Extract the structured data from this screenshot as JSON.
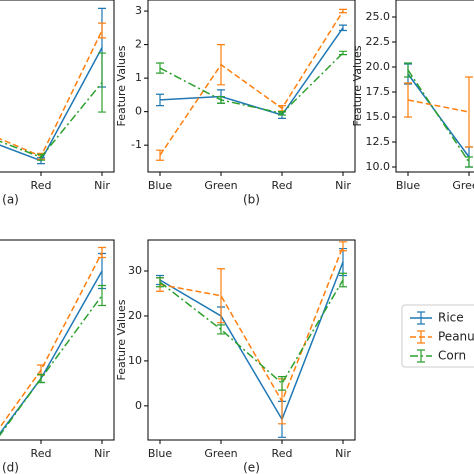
{
  "chart_data": [
    {
      "type": "line",
      "label": "(a)",
      "categories": [
        null,
        null,
        "Red",
        "Nir"
      ],
      "ylim": [
        0,
        3.5
      ],
      "series": [
        {
          "name": "Rice",
          "color": "#1f77b4",
          "dash": "solid",
          "values": [
            null,
            0.7,
            0.23,
            2.53
          ],
          "errors": [
            null,
            0.05,
            0.06,
            0.8
          ]
        },
        {
          "name": "Peanut",
          "color": "#ff7f0e",
          "dash": "dashed",
          "values": [
            null,
            0.85,
            0.32,
            2.88
          ],
          "errors": [
            null,
            0.05,
            0.06,
            0.15
          ]
        },
        {
          "name": "Corn",
          "color": "#2ca02c",
          "dash": "dashdot",
          "values": [
            null,
            0.78,
            0.3,
            1.82
          ],
          "errors": [
            null,
            0.05,
            0.06,
            0.6
          ]
        }
      ]
    },
    {
      "type": "line",
      "label": "(b)",
      "ylabel": "Feature Values",
      "categories": [
        "Blue",
        "Green",
        "Red",
        "Nir"
      ],
      "ylim": [
        -1.8,
        3.33
      ],
      "yticks": [
        -1,
        0,
        1,
        2,
        3
      ],
      "series": [
        {
          "name": "Rice",
          "color": "#1f77b4",
          "dash": "solid",
          "values": [
            0.35,
            0.45,
            -0.1,
            2.5
          ],
          "errors": [
            0.17,
            0.2,
            0.1,
            0.08
          ]
        },
        {
          "name": "Peanut",
          "color": "#ff7f0e",
          "dash": "dashed",
          "values": [
            -1.3,
            1.4,
            0.1,
            3.0
          ],
          "errors": [
            0.15,
            0.6,
            0.08,
            0.05
          ]
        },
        {
          "name": "Corn",
          "color": "#2ca02c",
          "dash": "dashdot",
          "values": [
            1.3,
            0.35,
            -0.05,
            1.75
          ],
          "errors": [
            0.15,
            0.1,
            0.05,
            0.05
          ]
        }
      ]
    },
    {
      "type": "line",
      "ylabel": "Feature Values",
      "categories": [
        "Blue",
        "Green",
        null,
        null
      ],
      "ylim": [
        9.5,
        26.7
      ],
      "yticks": [
        {
          "value": 10,
          "label": "10.0"
        },
        {
          "value": 12.5,
          "label": "12.5"
        },
        {
          "value": 15,
          "label": "15.0"
        },
        {
          "value": 17.5,
          "label": "17.5"
        },
        {
          "value": 20,
          "label": "20.0"
        },
        {
          "value": 22.5,
          "label": "22.5"
        },
        {
          "value": 25,
          "label": "25.0"
        }
      ],
      "series": [
        {
          "name": "Rice",
          "color": "#1f77b4",
          "dash": "solid",
          "values": [
            19.3,
            11,
            null,
            null
          ],
          "errors": [
            1,
            1,
            null,
            null
          ]
        },
        {
          "name": "Peanut",
          "color": "#ff7f0e",
          "dash": "dashed",
          "values": [
            16.7,
            15.5,
            null,
            null
          ],
          "errors": [
            1.7,
            3.5,
            null,
            null
          ]
        },
        {
          "name": "Corn",
          "color": "#2ca02c",
          "dash": "dashdot",
          "values": [
            19.7,
            10.5,
            null,
            null
          ],
          "errors": [
            0.7,
            0.5,
            null,
            null
          ]
        }
      ]
    },
    {
      "type": "line",
      "label": "(d)",
      "categories": [
        null,
        null,
        "Red",
        "Nir"
      ],
      "ylim": [
        0,
        40
      ],
      "series": [
        {
          "name": "Rice",
          "color": "#1f77b4",
          "dash": "solid",
          "values": [
            null,
            -4,
            12.3,
            33.8
          ],
          "errors": [
            null,
            0.5,
            0.8,
            3.5
          ]
        },
        {
          "name": "Peanut",
          "color": "#ff7f0e",
          "dash": "dashed",
          "values": [
            null,
            -3,
            14,
            37.5
          ],
          "errors": [
            null,
            0.5,
            1,
            1
          ]
        },
        {
          "name": "Corn",
          "color": "#2ca02c",
          "dash": "dashdot",
          "values": [
            null,
            -4.5,
            12.3,
            28.9
          ],
          "errors": [
            null,
            0.5,
            0.8,
            2
          ]
        }
      ]
    },
    {
      "type": "line",
      "label": "(e)",
      "ylabel": "Feature Values",
      "categories": [
        "Blue",
        "Green",
        "Red",
        "Nir"
      ],
      "ylim": [
        -7.6,
        36.9
      ],
      "yticks": [
        0,
        10,
        20,
        30
      ],
      "legend": "right",
      "series": [
        {
          "name": "Rice",
          "color": "#1f77b4",
          "dash": "solid",
          "values": [
            28,
            20,
            -3,
            32
          ],
          "errors": [
            1,
            2,
            4,
            3
          ]
        },
        {
          "name": "Peanut",
          "color": "#ff7f0e",
          "dash": "dashed",
          "values": [
            27,
            24.5,
            1,
            35.5
          ],
          "errors": [
            1.5,
            6,
            5,
            1
          ]
        },
        {
          "name": "Corn",
          "color": "#2ca02c",
          "dash": "dashdot",
          "values": [
            27.5,
            17,
            5,
            28
          ],
          "errors": [
            1,
            1,
            1.5,
            1.5
          ]
        }
      ]
    }
  ]
}
